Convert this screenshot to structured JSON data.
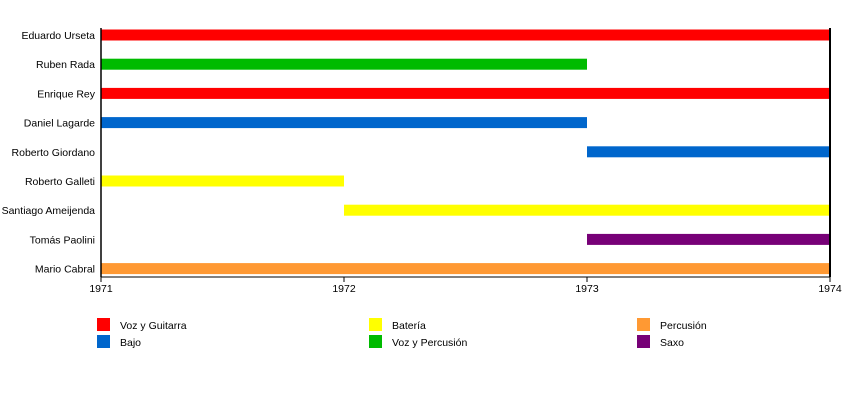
{
  "chart_data": {
    "type": "timeline",
    "x_range": [
      1971,
      1974
    ],
    "x_ticks": [
      "1971",
      "1972",
      "1973",
      "1974"
    ],
    "members": [
      {
        "name": "Eduardo Urseta",
        "start": 1971,
        "end": 1974,
        "role": "Voz y Guitarra"
      },
      {
        "name": "Ruben Rada",
        "start": 1971,
        "end": 1973,
        "role": "Voz y Percusión"
      },
      {
        "name": "Enrique Rey",
        "start": 1971,
        "end": 1974,
        "role": "Voz y Guitarra"
      },
      {
        "name": "Daniel Lagarde",
        "start": 1971,
        "end": 1973,
        "role": "Bajo"
      },
      {
        "name": "Roberto Giordano",
        "start": 1973,
        "end": 1974,
        "role": "Bajo"
      },
      {
        "name": "Roberto Galleti",
        "start": 1971,
        "end": 1972,
        "role": "Batería"
      },
      {
        "name": "Santiago Ameijenda",
        "start": 1972,
        "end": 1974,
        "role": "Batería"
      },
      {
        "name": "Tomás Paolini",
        "start": 1973,
        "end": 1974,
        "role": "Saxo"
      },
      {
        "name": "Mario Cabral",
        "start": 1971,
        "end": 1974,
        "role": "Percusión"
      }
    ],
    "legend": [
      {
        "label": "Voz y Guitarra",
        "color": "#ff0000"
      },
      {
        "label": "Bajo",
        "color": "#0066cc"
      },
      {
        "label": "Batería",
        "color": "#ffff00"
      },
      {
        "label": "Voz y Percusión",
        "color": "#00bb00"
      },
      {
        "label": "Percusión",
        "color": "#ff9933"
      },
      {
        "label": "Saxo",
        "color": "#770077"
      }
    ]
  }
}
